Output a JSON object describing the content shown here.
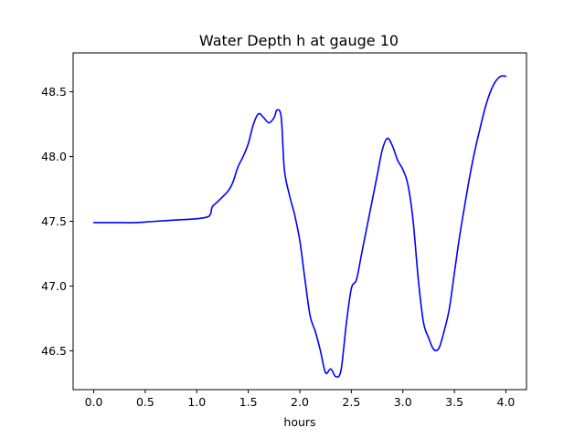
{
  "chart_data": {
    "type": "line",
    "title": "Water Depth h at gauge 10",
    "xlabel": "hours",
    "ylabel": "",
    "xlim": [
      -0.2,
      4.2
    ],
    "ylim": [
      46.2,
      48.8
    ],
    "x_ticks": [
      0.0,
      0.5,
      1.0,
      1.5,
      2.0,
      2.5,
      3.0,
      3.5,
      4.0
    ],
    "x_tick_labels": [
      "0.0",
      "0.5",
      "1.0",
      "1.5",
      "2.0",
      "2.5",
      "3.0",
      "3.5",
      "4.0"
    ],
    "y_ticks": [
      46.5,
      47.0,
      47.5,
      48.0,
      48.5
    ],
    "y_tick_labels": [
      "46.5",
      "47.0",
      "47.5",
      "48.0",
      "48.5"
    ],
    "grid": false,
    "legend": "none",
    "series": [
      {
        "color": "#0000ff",
        "x": [
          0.0,
          0.2,
          0.4,
          0.6,
          0.8,
          1.0,
          1.12,
          1.15,
          1.2,
          1.3,
          1.35,
          1.4,
          1.45,
          1.5,
          1.55,
          1.6,
          1.65,
          1.7,
          1.75,
          1.78,
          1.82,
          1.85,
          1.9,
          1.95,
          2.0,
          2.05,
          2.1,
          2.15,
          2.2,
          2.25,
          2.3,
          2.35,
          2.4,
          2.45,
          2.5,
          2.55,
          2.6,
          2.65,
          2.7,
          2.75,
          2.8,
          2.85,
          2.9,
          2.95,
          3.0,
          3.05,
          3.1,
          3.15,
          3.2,
          3.25,
          3.3,
          3.35,
          3.4,
          3.45,
          3.5,
          3.55,
          3.6,
          3.65,
          3.7,
          3.75,
          3.8,
          3.85,
          3.9,
          3.95,
          4.0
        ],
        "y": [
          47.49,
          47.49,
          47.49,
          47.5,
          47.51,
          47.52,
          47.54,
          47.61,
          47.65,
          47.73,
          47.8,
          47.92,
          48.0,
          48.1,
          48.25,
          48.33,
          48.3,
          48.26,
          48.3,
          48.36,
          48.3,
          47.9,
          47.7,
          47.55,
          47.35,
          47.05,
          46.77,
          46.65,
          46.5,
          46.33,
          46.36,
          46.3,
          46.35,
          46.7,
          46.98,
          47.05,
          47.25,
          47.45,
          47.65,
          47.85,
          48.05,
          48.14,
          48.08,
          47.97,
          47.9,
          47.78,
          47.5,
          47.05,
          46.72,
          46.6,
          46.51,
          46.52,
          46.65,
          46.82,
          47.1,
          47.38,
          47.62,
          47.85,
          48.05,
          48.22,
          48.38,
          48.5,
          48.58,
          48.62,
          48.62
        ]
      }
    ]
  }
}
